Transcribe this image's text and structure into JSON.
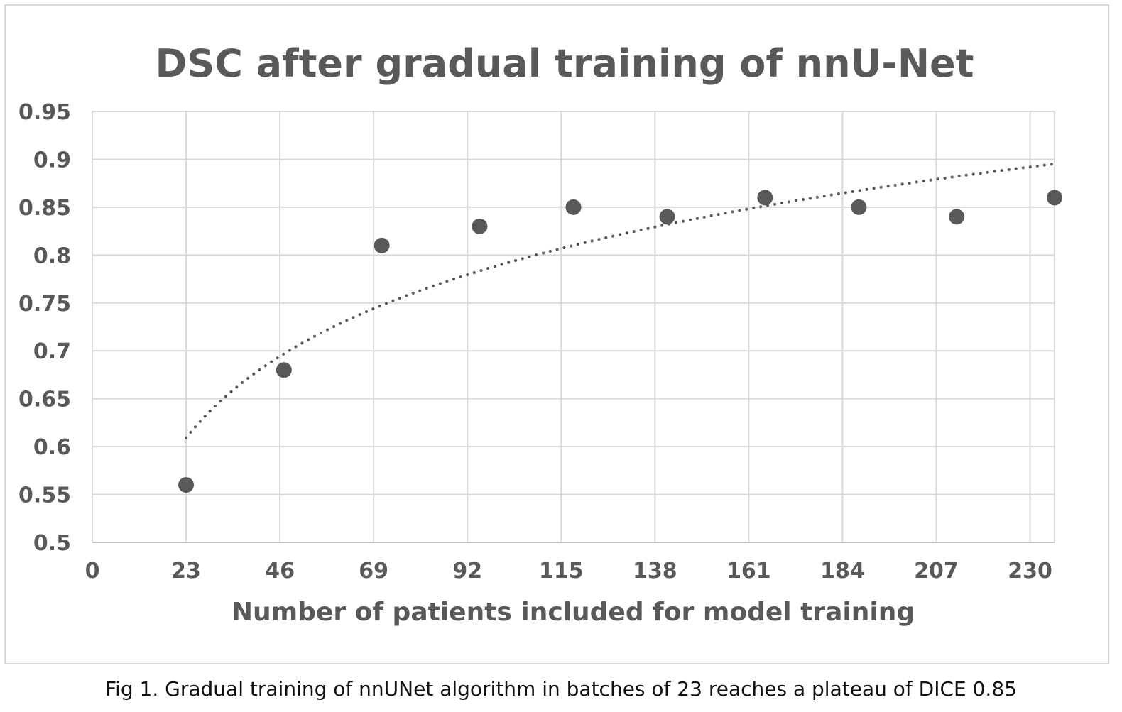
{
  "chart_data": {
    "type": "scatter",
    "title": "DSC after gradual training of nnU-Net",
    "xlabel": "Number of patients included for model training",
    "ylabel": "",
    "x_ticks": [
      "0",
      "23",
      "46",
      "69",
      "92",
      "115",
      "138",
      "161",
      "184",
      "207",
      "230"
    ],
    "y_ticks": [
      "0.5",
      "0.55",
      "0.6",
      "0.65",
      "0.7",
      "0.75",
      "0.8",
      "0.85",
      "0.9",
      "0.95"
    ],
    "xlim": [
      0,
      236
    ],
    "ylim": [
      0.5,
      0.95
    ],
    "grid": true,
    "series": [
      {
        "name": "DSC",
        "x": [
          23,
          47,
          71,
          95,
          118,
          141,
          165,
          188,
          212,
          236
        ],
        "y": [
          0.56,
          0.68,
          0.81,
          0.83,
          0.85,
          0.84,
          0.86,
          0.85,
          0.84,
          0.86
        ],
        "color": "#595959"
      }
    ],
    "trendline": {
      "type": "logarithmic",
      "style": "dotted",
      "color": "#595959",
      "x_start": 23,
      "x_end": 236,
      "a": 0.6091,
      "b": 0.1229
    }
  },
  "caption": "Fig 1. Gradual training of nnUNet algorithm in batches of 23 reaches a plateau of DICE 0.85"
}
